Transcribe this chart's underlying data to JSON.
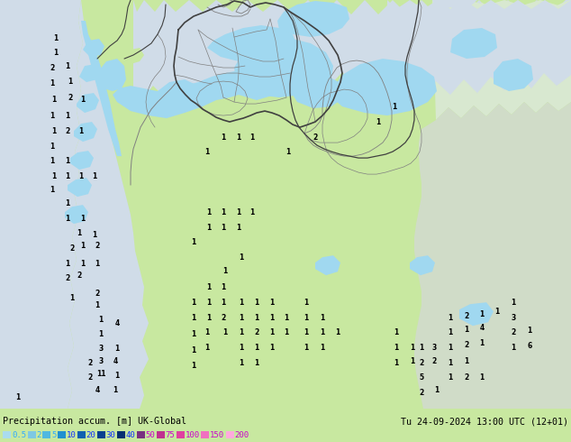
{
  "title_left": "Precipitation accum. [m] UK-Global",
  "title_right": "Tu 24-09-2024 13:00 UTC (12+01)",
  "colorbar_labels": [
    "0.5",
    "2",
    "5",
    "10",
    "20",
    "30",
    "40",
    "50",
    "75",
    "100",
    "150",
    "200"
  ],
  "colorbar_colors": [
    "#aadcee",
    "#7ec8e3",
    "#50b8e0",
    "#2090d0",
    "#1060b0",
    "#084090",
    "#053070",
    "#783080",
    "#c03090",
    "#e040a0",
    "#f070c0",
    "#ffaadd"
  ],
  "colorbar_text_colors": [
    "#30aaff",
    "#30aaff",
    "#30aaff",
    "#1030ff",
    "#1030ff",
    "#1030ff",
    "#1030ff",
    "#cc00cc",
    "#cc00cc",
    "#cc00cc",
    "#cc00cc",
    "#cc00cc"
  ],
  "land_color": "#c8e8a0",
  "sea_color": "#e0eef8",
  "precip_light": "#a0d8f0",
  "precip_mid": "#60b8e8",
  "border_color": "#404040",
  "inner_border_color": "#808080",
  "fig_bg": "#c8e8a0",
  "legend_bg": "#d0ecc0",
  "fig_width": 6.34,
  "fig_height": 4.9
}
